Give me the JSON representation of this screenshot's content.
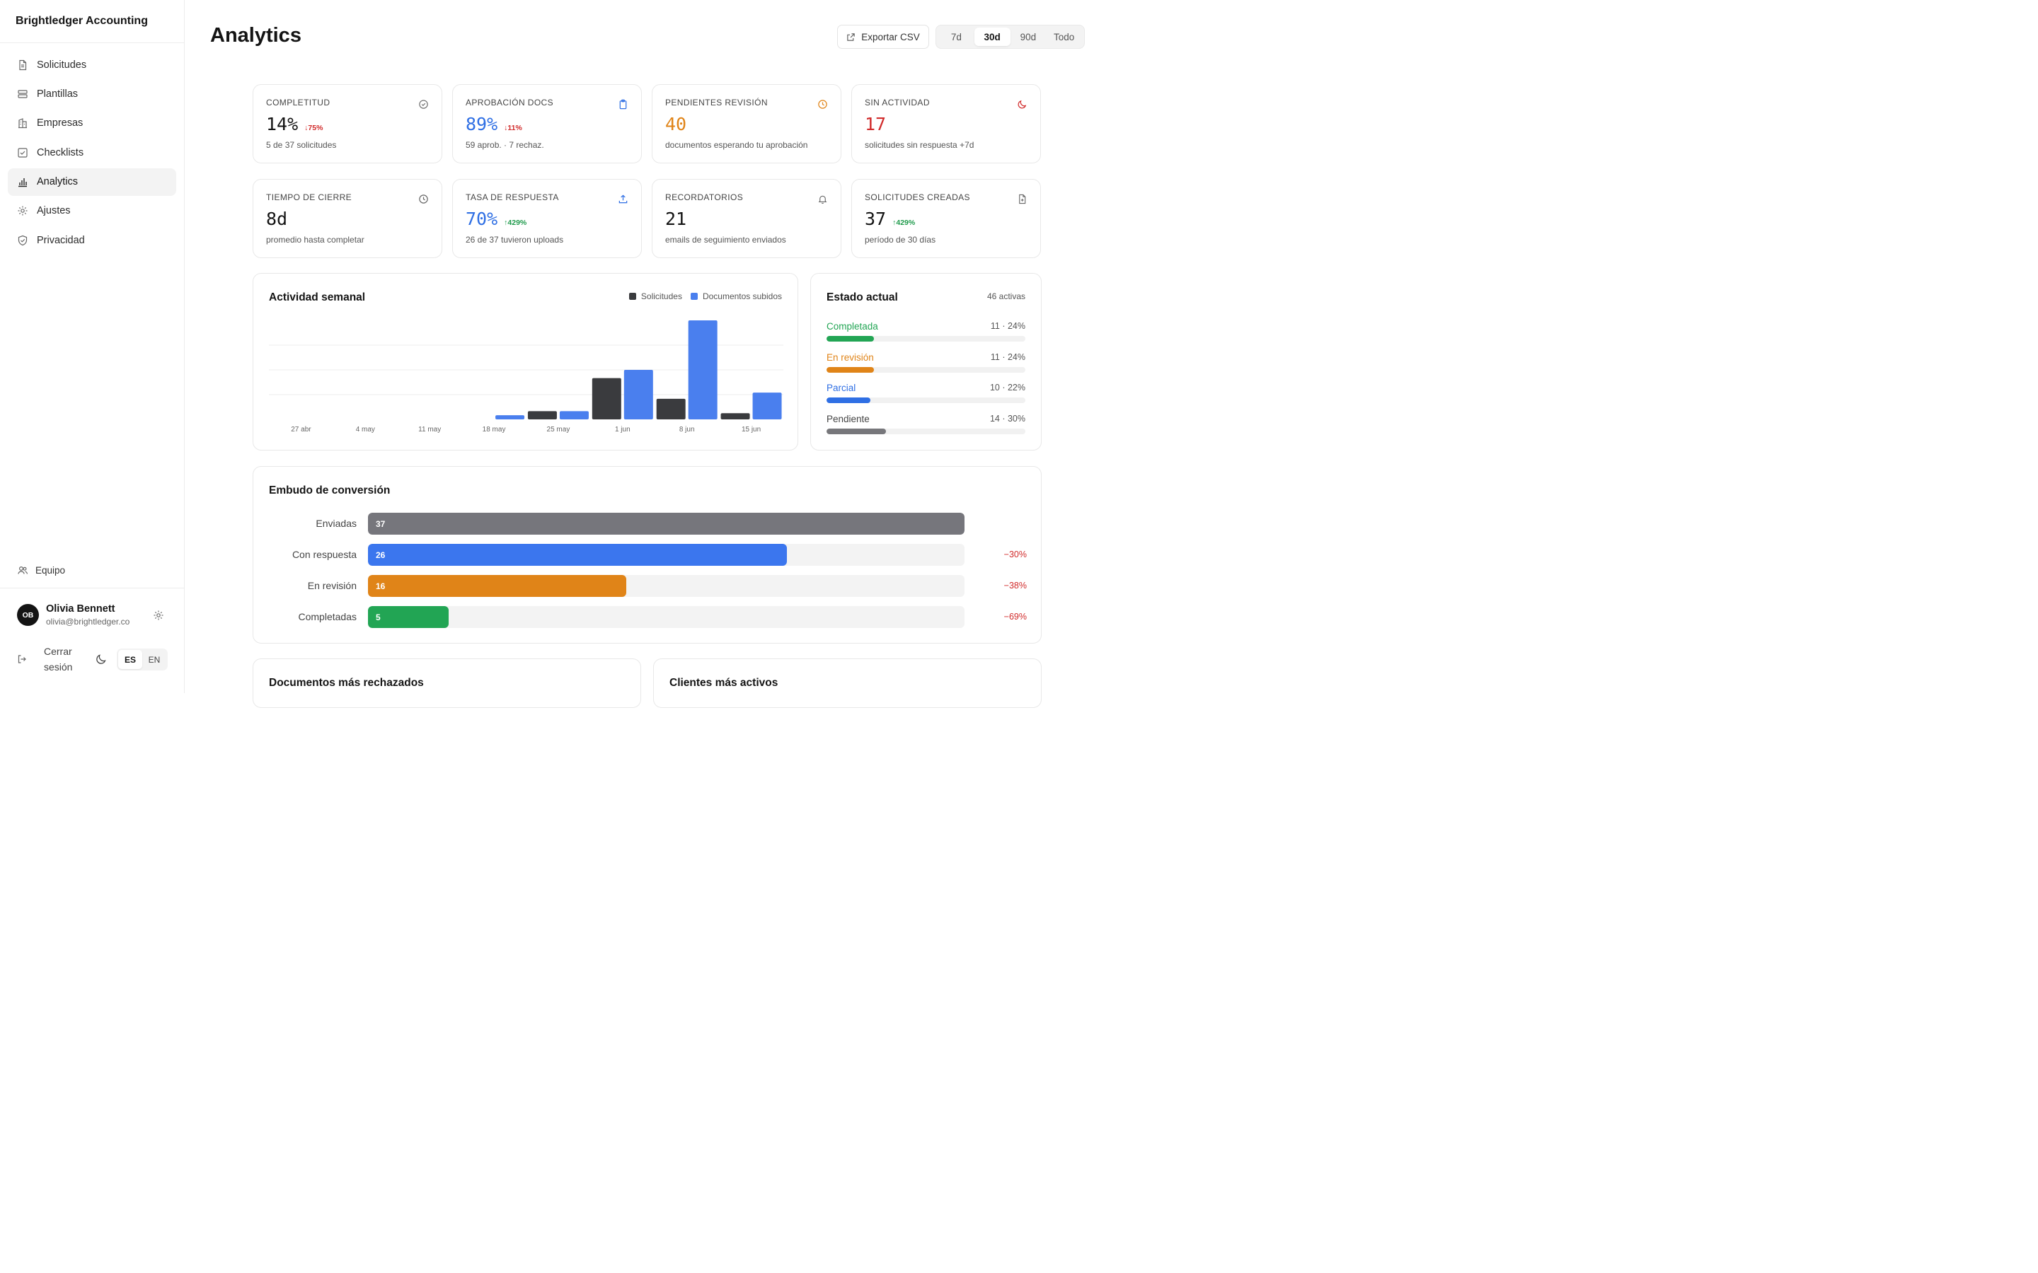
{
  "app": {
    "name": "Brightledger Accounting"
  },
  "sidebar": {
    "items": [
      {
        "label": "Solicitudes",
        "icon": "file-icon"
      },
      {
        "label": "Plantillas",
        "icon": "layers-icon"
      },
      {
        "label": "Empresas",
        "icon": "building-icon"
      },
      {
        "label": "Checklists",
        "icon": "checkbox-icon"
      },
      {
        "label": "Analytics",
        "icon": "bar-chart-icon",
        "active": true
      },
      {
        "label": "Ajustes",
        "icon": "gear-icon"
      },
      {
        "label": "Privacidad",
        "icon": "shield-icon"
      }
    ],
    "team_label": "Equipo",
    "user": {
      "initials": "OB",
      "name": "Olivia Bennett",
      "email": "olivia@brightledger.co"
    },
    "logout_label": "Cerrar sesión",
    "languages": [
      "ES",
      "EN"
    ],
    "active_language": "ES"
  },
  "header": {
    "title": "Analytics",
    "export_label": "Exportar CSV",
    "ranges": [
      "7d",
      "30d",
      "90d",
      "Todo"
    ],
    "active_range": "30d"
  },
  "kpis": [
    {
      "label": "COMPLETITUD",
      "value": "14%",
      "delta": "75%",
      "delta_dir": "down",
      "sub": "5 de 37 solicitudes",
      "color": "#141414",
      "icon": "check-circle-icon",
      "icon_color": "#666666"
    },
    {
      "label": "APROBACIÓN DOCS",
      "value": "89%",
      "delta": "11%",
      "delta_dir": "down",
      "sub": "59 aprob. · 7 rechaz.",
      "color": "#2f6fe4",
      "icon": "clipboard-icon",
      "icon_color": "#2f6fe4"
    },
    {
      "label": "PENDIENTES REVISIÓN",
      "value": "40",
      "delta": "",
      "delta_dir": "",
      "sub": "documentos esperando tu aprobación",
      "color": "#e08418",
      "icon": "clock-icon",
      "icon_color": "#e08418"
    },
    {
      "label": "SIN ACTIVIDAD",
      "value": "17",
      "delta": "",
      "delta_dir": "",
      "sub": "solicitudes sin respuesta +7d",
      "color": "#d12b2b",
      "icon": "moon-icon",
      "icon_color": "#d12b2b"
    },
    {
      "label": "TIEMPO DE CIERRE",
      "value": "8d",
      "delta": "",
      "delta_dir": "",
      "sub": "promedio hasta completar",
      "color": "#141414",
      "icon": "clock-icon",
      "icon_color": "#666666"
    },
    {
      "label": "TASA DE RESPUESTA",
      "value": "70%",
      "delta": "429%",
      "delta_dir": "up",
      "sub": "26 de 37 tuvieron uploads",
      "color": "#2f6fe4",
      "icon": "upload-icon",
      "icon_color": "#2f6fe4"
    },
    {
      "label": "RECORDATORIOS",
      "value": "21",
      "delta": "",
      "delta_dir": "",
      "sub": "emails de seguimiento enviados",
      "color": "#141414",
      "icon": "bell-icon",
      "icon_color": "#666666"
    },
    {
      "label": "SOLICITUDES CREADAS",
      "value": "37",
      "delta": "429%",
      "delta_dir": "up",
      "sub": "período de 30 días",
      "color": "#141414",
      "icon": "file-plus-icon",
      "icon_color": "#666666"
    }
  ],
  "weekly": {
    "title": "Actividad semanal",
    "legend": [
      {
        "name": "Solicitudes",
        "color": "#3a3b3e"
      },
      {
        "name": "Documentos subidos",
        "color": "#4a7fee"
      }
    ]
  },
  "chart_data": {
    "type": "bar",
    "title": "Actividad semanal",
    "categories": [
      "27 abr",
      "4 may",
      "11 may",
      "18 may",
      "25 may",
      "1 jun",
      "8 jun",
      "15 jun"
    ],
    "series": [
      {
        "name": "Solicitudes",
        "values": [
          0,
          0,
          0,
          0,
          2,
          10,
          5,
          1.5
        ]
      },
      {
        "name": "Documentos subidos",
        "values": [
          0,
          0,
          0,
          1,
          2,
          12,
          24,
          6.5
        ]
      }
    ],
    "ylim": [
      0,
      24
    ],
    "grid": true,
    "legend_position": "top-right"
  },
  "status": {
    "title": "Estado actual",
    "active_label": "46 activas",
    "rows": [
      {
        "label": "Completada",
        "count": "11 · 24%",
        "pct": 0.24,
        "color": "#22a554"
      },
      {
        "label": "En revisión",
        "count": "11 · 24%",
        "pct": 0.24,
        "color": "#e08418"
      },
      {
        "label": "Parcial",
        "count": "10 · 22%",
        "pct": 0.22,
        "color": "#2f6fe4"
      },
      {
        "label": "Pendiente",
        "count": "14 · 30%",
        "pct": 0.3,
        "color": "#77777b"
      }
    ]
  },
  "funnel": {
    "title": "Embudo de conversión",
    "max": 37,
    "rows": [
      {
        "label": "Enviadas",
        "value": "37",
        "n": 37,
        "drop": "",
        "color": "#76767c"
      },
      {
        "label": "Con respuesta",
        "value": "26",
        "n": 26,
        "drop": "−30%",
        "color": "#3b76ee"
      },
      {
        "label": "En revisión",
        "value": "16",
        "n": 16,
        "drop": "−38%",
        "color": "#e08418"
      },
      {
        "label": "Completadas",
        "value": "5",
        "n": 5,
        "drop": "−69%",
        "color": "#22a554"
      }
    ]
  },
  "bottom": {
    "rejected_title": "Documentos más rechazados",
    "clients_title": "Clientes más activos"
  }
}
